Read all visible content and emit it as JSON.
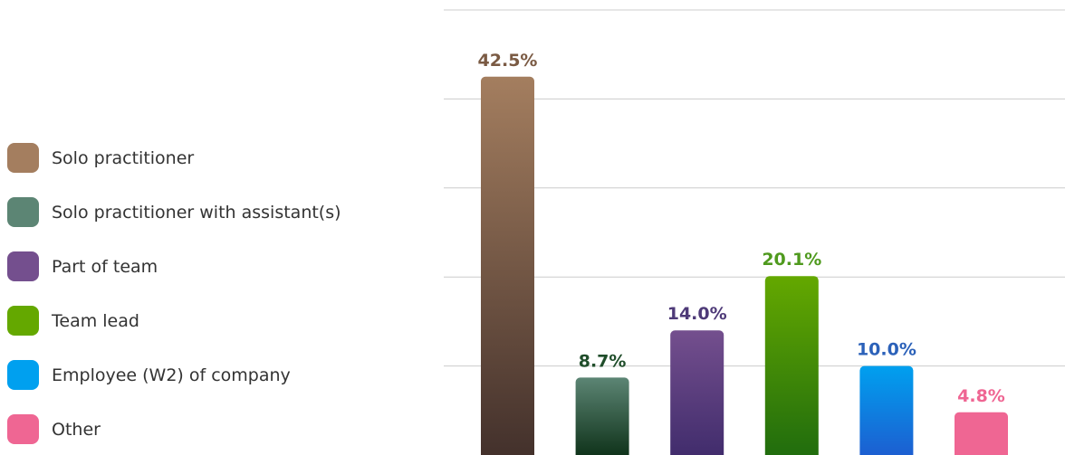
{
  "chart_data": {
    "type": "bar",
    "title": "",
    "xlabel": "",
    "ylabel": "",
    "ylim": [
      0,
      50
    ],
    "grid": true,
    "legend_position": "left",
    "categories": [
      "Solo practitioner",
      "Solo practitioner with assistant(s)",
      "Part of team",
      "Team lead",
      "Employee (W2) of company",
      "Other"
    ],
    "values": [
      42.5,
      8.7,
      14.0,
      20.1,
      10.0,
      4.8
    ],
    "value_labels": [
      "42.5%",
      "8.7%",
      "14.0%",
      "20.1%",
      "10.0%",
      "4.8%"
    ],
    "colors": {
      "bar_top": [
        "#a47e5f",
        "#5c8574",
        "#744f8e",
        "#64a800",
        "#00a0ef",
        "#ef6693"
      ],
      "bar_bottom": [
        "#42302b",
        "#0b2e15",
        "#3f2b6b",
        "#1f6b0e",
        "#1e5bcf",
        "#ef6693"
      ],
      "label": [
        "#7a5a43",
        "#1f4d2a",
        "#4e3a78",
        "#4f9a1e",
        "#2b61b9",
        "#ef6693"
      ],
      "legend": [
        "#a47e5f",
        "#5c8574",
        "#744f8e",
        "#64a800",
        "#00a0ef",
        "#ef6693"
      ],
      "grid": "#cccccc"
    }
  }
}
